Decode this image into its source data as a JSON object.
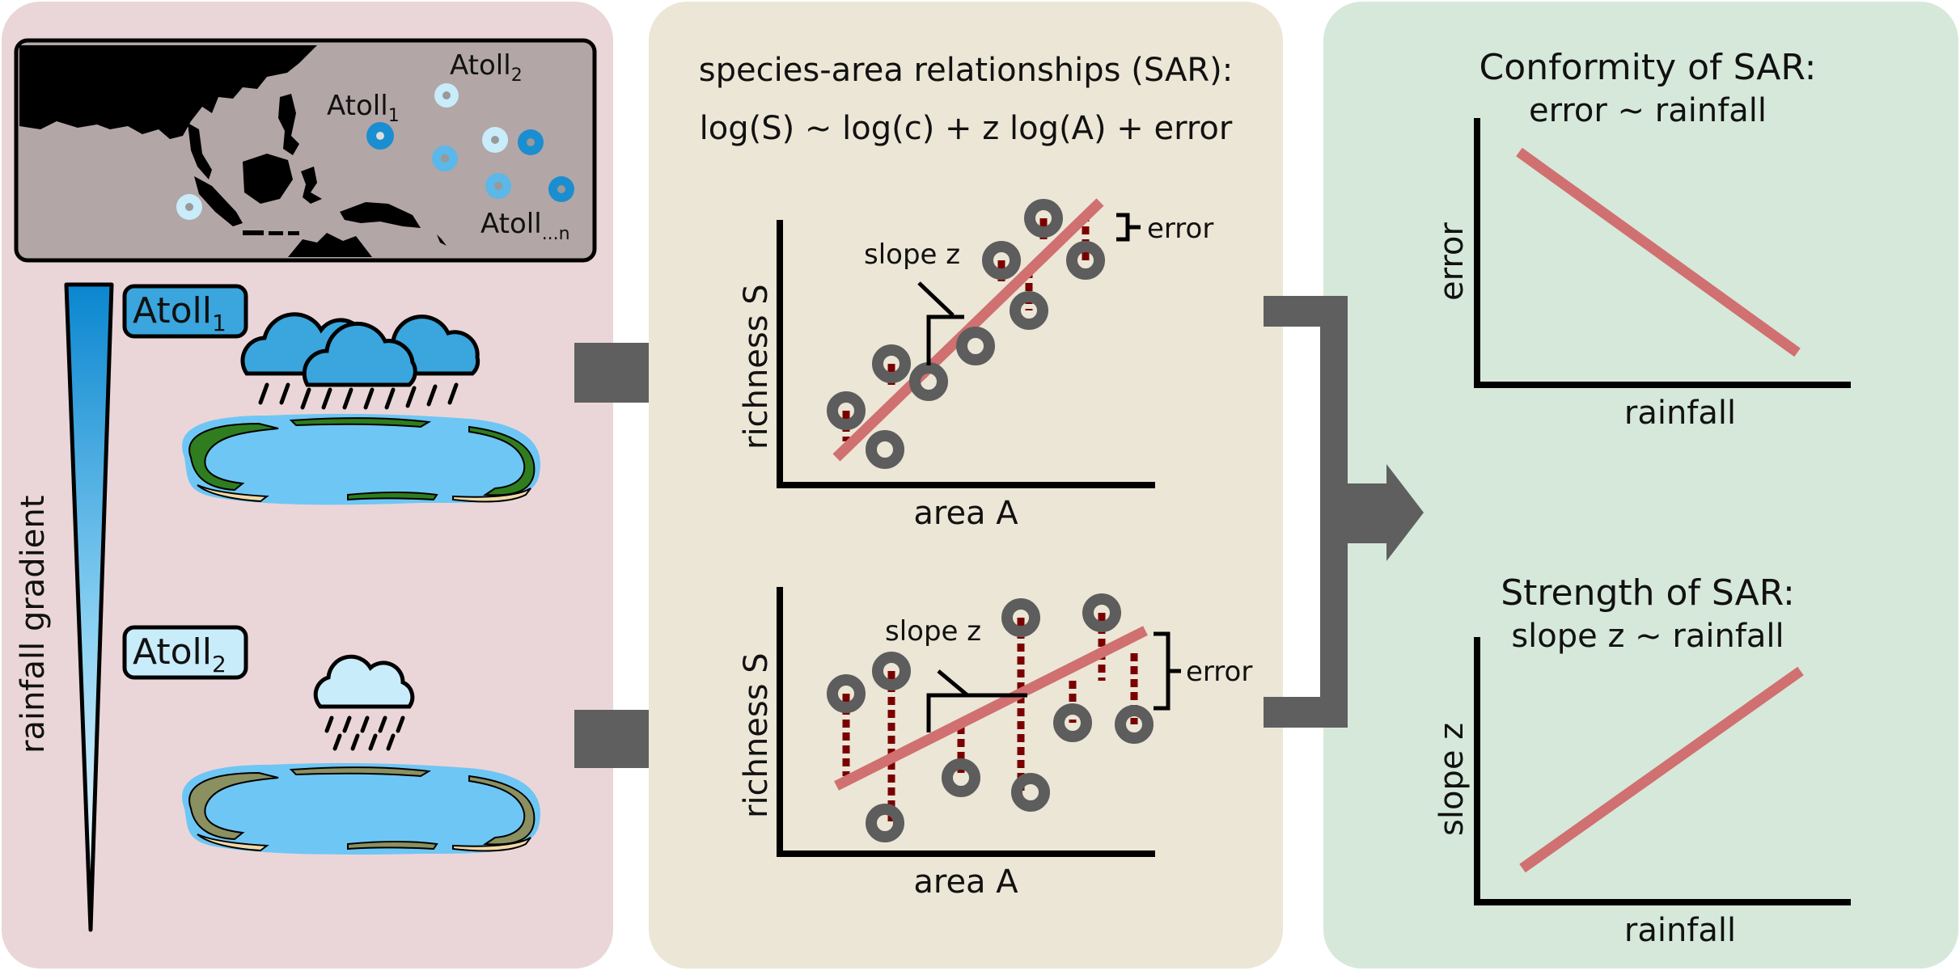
{
  "colors": {
    "panel_left": "#ead6d8",
    "panel_middle": "#ece6d6",
    "panel_right": "#d6e8da",
    "map_land": "#000000",
    "map_sea": "#b3a6a6",
    "atoll_dark": "#1a8ed0",
    "atoll_mid": "#5bb8e8",
    "atoll_light": "#c8ecfa",
    "cloud_dark": "#3aa6dd",
    "cloud_light": "#c8ecfa",
    "lagoon": "#6ec6f5",
    "vegetation_wet": "#2f7d1f",
    "vegetation_dry": "#8a9060",
    "sand": "#f1d9a8",
    "arrow_gray": "#5f5f5f",
    "regression_line": "#d07070",
    "error_line": "#7a0000",
    "point_gray": "#5d5d5d"
  },
  "left_panel": {
    "map": {
      "labels": [
        {
          "base": "Atoll",
          "sub": "1"
        },
        {
          "base": "Atoll",
          "sub": "2"
        },
        {
          "base": "Atoll",
          "sub": "...n"
        }
      ]
    },
    "gradient_label": "rainfall gradient",
    "atoll_1": {
      "base": "Atoll",
      "sub": "1"
    },
    "atoll_2": {
      "base": "Atoll",
      "sub": "2"
    }
  },
  "middle_panel": {
    "title": "species-area relationships (SAR):",
    "equation": "log(S) ~ log(c) + z log(A) + error",
    "plot_top": {
      "ylabel": "richness S",
      "xlabel": "area A",
      "slope_label": "slope z",
      "error_label": "error"
    },
    "plot_bottom": {
      "ylabel": "richness S",
      "xlabel": "area A",
      "slope_label": "slope z",
      "error_label": "error"
    }
  },
  "right_panel": {
    "top": {
      "title_line1": "Conformity of SAR:",
      "title_line2": "error ~ rainfall",
      "ylabel": "error",
      "xlabel": "rainfall"
    },
    "bottom": {
      "title_line1": "Strength of SAR:",
      "title_line2": "slope z ~ rainfall",
      "ylabel": "slope z",
      "xlabel": "rainfall"
    }
  }
}
